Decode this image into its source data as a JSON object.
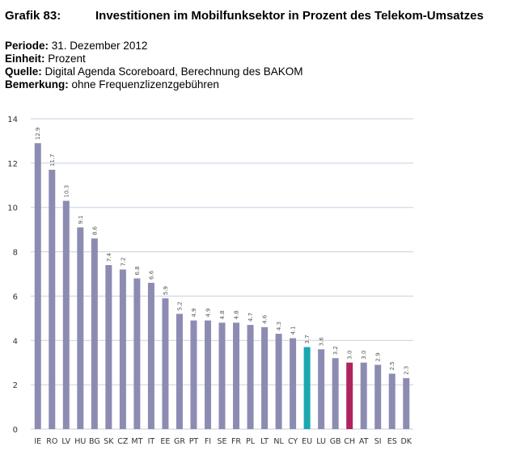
{
  "header": {
    "number": "Grafik 83:",
    "title": "Investitionen im Mobilfunksektor in Prozent des Telekom-Umsatzes"
  },
  "meta": {
    "periode_key": "Periode:",
    "periode_val": " 31. Dezember 2012",
    "einheit_key": "Einheit:",
    "einheit_val": " Prozent",
    "quelle_key": "Quelle:",
    "quelle_val": " Digital Agenda Scoreboard, Berechnung des BAKOM",
    "bemerkung_key": "Bemerkung:",
    "bemerkung_val": " ohne Frequenzlizenzgebühren"
  },
  "chart_data": {
    "type": "bar",
    "title": "",
    "xlabel": "",
    "ylabel": "",
    "ylim": [
      0,
      14
    ],
    "yticks": [
      0,
      2,
      4,
      6,
      8,
      10,
      12,
      14
    ],
    "grid": true,
    "categories": [
      "IE",
      "RO",
      "LV",
      "HU",
      "BG",
      "SK",
      "CZ",
      "MT",
      "IT",
      "EE",
      "GR",
      "PT",
      "FI",
      "SE",
      "FR",
      "PL",
      "LT",
      "NL",
      "CY",
      "EU",
      "LU",
      "GB",
      "CH",
      "AT",
      "SI",
      "ES",
      "DK"
    ],
    "values": [
      12.9,
      11.7,
      10.3,
      9.1,
      8.6,
      7.4,
      7.2,
      6.8,
      6.6,
      5.9,
      5.2,
      4.9,
      4.9,
      4.8,
      4.8,
      4.7,
      4.6,
      4.3,
      4.1,
      3.7,
      3.6,
      3.2,
      3.0,
      3.0,
      2.9,
      2.5,
      2.3
    ],
    "value_labels": [
      "12.9",
      "11.7",
      "10.3",
      "9.1",
      "8.6",
      "7.4",
      "7.2",
      "6.8",
      "6.6",
      "5.9",
      "5.2",
      "4.9",
      "4.9",
      "4.8",
      "4.8",
      "4.7",
      "4.6",
      "4.3",
      "4.1",
      "3.7",
      "3.6",
      "3.2",
      "3.0",
      "3.0",
      "2.9",
      "2.5",
      "2.3"
    ],
    "colors": {
      "default": "#8c8cb3",
      "highlights": {
        "EU": "#1aa7b0",
        "CH": "#b0245e"
      },
      "grid": "#c9cfe0"
    }
  }
}
